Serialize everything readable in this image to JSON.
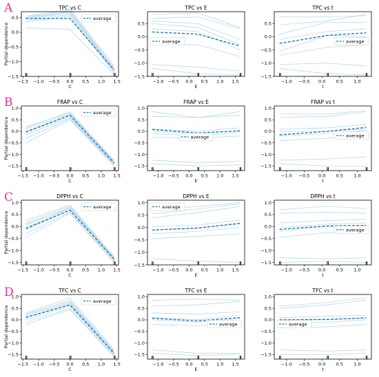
{
  "figure": {
    "row_letters": [
      "A",
      "B",
      "C",
      "D"
    ],
    "colors": {
      "ice": "#9ecae1",
      "average": "#1f77b4",
      "axis": "#000000",
      "letter": "#e0309a"
    }
  },
  "chart_data": [
    {
      "type": "line",
      "row": 0,
      "col": 0,
      "title": "TPC vs C",
      "xlabel": "C",
      "ylabel": "Partial dependence",
      "x": [
        -1.41,
        0,
        1.41
      ],
      "xlim": [
        -1.55,
        1.55
      ],
      "ylim": [
        -1.5,
        0.7
      ],
      "xticks": [
        -1.5,
        -1.0,
        -0.5,
        0.0,
        0.5,
        1.0,
        1.5
      ],
      "xtick_labels": [
        "−1.5",
        "−1.0",
        "−0.5",
        "0.0",
        "0.5",
        "1.0",
        "1.5"
      ],
      "yticks": [
        0.5,
        0.0,
        -0.5,
        -1.0,
        -1.5
      ],
      "ytick_labels": [
        "0.5",
        "0.0",
        "−0.5",
        "−1.0",
        "−1.5"
      ],
      "rug": [
        -1.41,
        -1.41,
        0,
        0,
        1.41,
        1.41
      ],
      "legend": "top-right",
      "legend_label": "average",
      "ice": [
        [
          0.55,
          0.75,
          -1.2
        ],
        [
          0.5,
          0.7,
          -1.25
        ],
        [
          0.45,
          0.65,
          -1.3
        ],
        [
          0.4,
          0.6,
          -1.35
        ],
        [
          0.5,
          0.8,
          -1.15
        ],
        [
          0.35,
          0.55,
          -1.4
        ],
        [
          0.45,
          0.7,
          -1.3
        ],
        [
          0.15,
          0.1,
          -1.45
        ]
      ],
      "average": [
        0.47,
        0.47,
        -1.28
      ]
    },
    {
      "type": "line",
      "row": 0,
      "col": 1,
      "title": "TPC vs E",
      "xlabel": "E",
      "ylabel": "",
      "x": [
        -1.2,
        0.28,
        1.65
      ],
      "xlim": [
        -1.35,
        1.8
      ],
      "ylim": [
        -1.5,
        0.95
      ],
      "xticks": [
        -1.0,
        -0.5,
        0.0,
        0.5,
        1.0,
        1.5
      ],
      "xtick_labels": [
        "−1.0",
        "−0.5",
        "0.0",
        "0.5",
        "1.0",
        "1.5"
      ],
      "yticks": [
        0.5,
        0.0,
        -0.5,
        -1.0,
        -1.5
      ],
      "ytick_labels": [
        "0.5",
        "0.0",
        "−0.5",
        "−1.0",
        "−1.5"
      ],
      "rug": [
        -1.2,
        -1.2,
        0.28,
        0.28,
        1.65,
        1.65
      ],
      "legend": "center-left",
      "legend_label": "average",
      "ice": [
        [
          0.85,
          0.9,
          0.35
        ],
        [
          0.7,
          0.75,
          0.3
        ],
        [
          0.6,
          0.5,
          -0.1
        ],
        [
          0.5,
          0.35,
          -0.3
        ],
        [
          0.3,
          0.2,
          -0.5
        ],
        [
          -0.3,
          -0.3,
          -0.75
        ],
        [
          -1.05,
          -1.15,
          -1.3
        ],
        [
          -1.2,
          -1.4,
          -1.45
        ]
      ],
      "average": [
        0.18,
        0.1,
        -0.35
      ]
    },
    {
      "type": "line",
      "row": 0,
      "col": 2,
      "title": "TPC vs t",
      "xlabel": "t",
      "ylabel": "",
      "x": [
        -1.2,
        0.15,
        1.25
      ],
      "xlim": [
        -1.35,
        1.4
      ],
      "ylim": [
        -1.5,
        0.95
      ],
      "xticks": [
        -1.0,
        -0.5,
        0.0,
        0.5,
        1.0
      ],
      "xtick_labels": [
        "−1.0",
        "−0.5",
        "0.0",
        "0.5",
        "1.0"
      ],
      "yticks": [
        0.5,
        0.0,
        -0.5,
        -1.0,
        -1.5
      ],
      "ytick_labels": [
        "0.5",
        "0.0",
        "−0.5",
        "−1.0",
        "−1.5"
      ],
      "rug": [
        -1.2,
        -1.2,
        0.15,
        0.15,
        1.25,
        1.25
      ],
      "legend": "center-right",
      "legend_label": "average",
      "ice": [
        [
          0.75,
          0.75,
          0.8
        ],
        [
          0.45,
          0.6,
          0.85
        ],
        [
          0.1,
          0.55,
          0.55
        ],
        [
          -0.1,
          0.2,
          0.3
        ],
        [
          -0.55,
          0.05,
          0.0
        ],
        [
          -0.7,
          -0.4,
          -0.3
        ],
        [
          -1.05,
          -1.0,
          -1.1
        ],
        [
          -1.2,
          -1.4,
          -1.45
        ]
      ],
      "average": [
        -0.25,
        0.05,
        0.15
      ]
    },
    {
      "type": "line",
      "row": 1,
      "col": 0,
      "title": "FRAP vs C",
      "xlabel": "C",
      "ylabel": "Partial dependence",
      "x": [
        -1.41,
        0,
        1.41
      ],
      "xlim": [
        -1.55,
        1.55
      ],
      "ylim": [
        -1.7,
        1.1
      ],
      "xticks": [
        -1.5,
        -1.0,
        -0.5,
        0.0,
        0.5,
        1.0,
        1.5
      ],
      "xtick_labels": [
        "−1.5",
        "−1.0",
        "−0.5",
        "0.0",
        "0.5",
        "1.0",
        "1.5"
      ],
      "yticks": [
        1.0,
        0.5,
        0.0,
        -0.5,
        -1.0,
        -1.5
      ],
      "ytick_labels": [
        "1.0",
        "0.5",
        "0.0",
        "−0.5",
        "−1.0",
        "−1.5"
      ],
      "rug": [
        -1.41,
        -1.41,
        0,
        0,
        1.41,
        1.41
      ],
      "legend": "top-right",
      "legend_label": "average",
      "ice": [
        [
          0.2,
          0.8,
          -1.25
        ],
        [
          0.1,
          0.75,
          -1.3
        ],
        [
          0.0,
          0.7,
          -1.35
        ],
        [
          -0.05,
          0.65,
          -1.4
        ],
        [
          -0.15,
          0.6,
          -1.45
        ],
        [
          -0.3,
          0.55,
          -1.45
        ],
        [
          -0.5,
          0.5,
          -1.5
        ],
        [
          0.15,
          0.85,
          -1.3
        ]
      ],
      "average": [
        -0.03,
        0.7,
        -1.37
      ]
    },
    {
      "type": "line",
      "row": 1,
      "col": 1,
      "title": "FRAP vs E",
      "xlabel": "E",
      "ylabel": "",
      "x": [
        -1.2,
        0.28,
        1.65
      ],
      "xlim": [
        -1.35,
        1.8
      ],
      "ylim": [
        -1.7,
        1.1
      ],
      "xticks": [
        -1.0,
        -0.5,
        0.0,
        0.5,
        1.0,
        1.5
      ],
      "xtick_labels": [
        "−1.0",
        "−0.5",
        "0.0",
        "0.5",
        "1.0",
        "1.5"
      ],
      "yticks": [
        1.0,
        0.5,
        0.0,
        -0.5,
        -1.0,
        -1.5
      ],
      "ytick_labels": [
        "1.0",
        "0.5",
        "0.0",
        "−0.5",
        "−1.0",
        "−1.5"
      ],
      "rug": [
        -1.2,
        -1.2,
        0.28,
        0.28,
        1.65,
        1.65
      ],
      "legend": "center",
      "legend_label": "average",
      "ice": [
        [
          0.85,
          0.6,
          0.85
        ],
        [
          0.65,
          0.6,
          0.7
        ],
        [
          0.1,
          0.0,
          0.15
        ],
        [
          0.0,
          -0.1,
          0.05
        ],
        [
          -0.1,
          -0.2,
          -0.05
        ],
        [
          -0.25,
          -0.3,
          -0.2
        ],
        [
          -1.25,
          -1.35,
          -1.3
        ],
        [
          -1.4,
          -1.5,
          -1.45
        ]
      ],
      "average": [
        0.08,
        -0.07,
        0.02
      ]
    },
    {
      "type": "line",
      "row": 1,
      "col": 2,
      "title": "FRAP vs t",
      "xlabel": "t",
      "ylabel": "",
      "x": [
        -1.2,
        0.15,
        1.25
      ],
      "xlim": [
        -1.35,
        1.4
      ],
      "ylim": [
        -1.7,
        1.1
      ],
      "xticks": [
        -1.0,
        -0.5,
        0.0,
        0.5,
        1.0
      ],
      "xtick_labels": [
        "−1.0",
        "−0.5",
        "0.0",
        "0.5",
        "1.0"
      ],
      "yticks": [
        1.0,
        0.5,
        0.0,
        -0.5,
        -1.0,
        -1.5
      ],
      "ytick_labels": [
        "1.0",
        "0.5",
        "0.0",
        "−0.5",
        "−1.0",
        "−1.5"
      ],
      "rug": [
        -1.2,
        -1.2,
        0.15,
        0.15,
        1.25,
        1.25
      ],
      "legend": "center-right",
      "legend_label": "average",
      "ice": [
        [
          0.75,
          0.75,
          0.9
        ],
        [
          0.6,
          0.65,
          0.85
        ],
        [
          0.1,
          0.15,
          0.3
        ],
        [
          0.0,
          0.0,
          0.1
        ],
        [
          -0.2,
          -0.1,
          0.05
        ],
        [
          -0.4,
          -0.3,
          -0.1
        ],
        [
          -1.25,
          -1.2,
          -1.1
        ],
        [
          -1.4,
          -1.5,
          -1.5
        ]
      ],
      "average": [
        -0.15,
        0.0,
        0.17
      ]
    },
    {
      "type": "line",
      "row": 2,
      "col": 0,
      "title": "DPPH vs C",
      "xlabel": "C",
      "ylabel": "Partial dependence",
      "x": [
        -1.41,
        0,
        1.41
      ],
      "xlim": [
        -1.55,
        1.55
      ],
      "ylim": [
        -1.6,
        1.1
      ],
      "xticks": [
        -1.5,
        -1.0,
        -0.5,
        0.0,
        0.5,
        1.0,
        1.5
      ],
      "xtick_labels": [
        "−1.5",
        "−1.0",
        "−0.5",
        "0.0",
        "0.5",
        "1.0",
        "1.5"
      ],
      "yticks": [
        1.0,
        0.5,
        0.0,
        -0.5,
        -1.0,
        -1.5
      ],
      "ytick_labels": [
        "1.0",
        "0.5",
        "0.0",
        "−0.5",
        "−1.0",
        "−1.5"
      ],
      "rug": [
        -1.41,
        -1.41,
        0,
        0,
        1.41,
        1.41
      ],
      "legend": "top-right",
      "legend_label": "average",
      "ice": [
        [
          0.25,
          0.9,
          -1.25
        ],
        [
          0.15,
          0.85,
          -1.3
        ],
        [
          0.05,
          0.8,
          -1.3
        ],
        [
          -0.05,
          0.75,
          -1.35
        ],
        [
          -0.15,
          0.7,
          -1.4
        ],
        [
          -0.3,
          0.6,
          -1.45
        ],
        [
          -0.45,
          0.55,
          -1.5
        ],
        [
          0.1,
          0.75,
          -1.35
        ]
      ],
      "average": [
        -0.08,
        0.68,
        -1.36
      ]
    },
    {
      "type": "line",
      "row": 2,
      "col": 1,
      "title": "DPPH vs E",
      "xlabel": "E",
      "ylabel": "",
      "x": [
        -1.2,
        0.28,
        1.65
      ],
      "xlim": [
        -1.35,
        1.8
      ],
      "ylim": [
        -1.5,
        1.1
      ],
      "xticks": [
        -1.0,
        -0.5,
        0.0,
        0.5,
        1.0,
        1.5
      ],
      "xtick_labels": [
        "−1.0",
        "−0.5",
        "0.0",
        "0.5",
        "1.0",
        "1.5"
      ],
      "yticks": [
        1.0,
        0.5,
        0.0,
        -0.5,
        -1.0,
        -1.5
      ],
      "ytick_labels": [
        "1.0",
        "0.5",
        "0.0",
        "−0.5",
        "−1.0",
        "−1.5"
      ],
      "rug": [
        -1.2,
        -1.2,
        0.28,
        0.28,
        1.65,
        1.65
      ],
      "legend": "top-left",
      "legend_label": "average",
      "ice": [
        [
          0.7,
          0.85,
          1.0
        ],
        [
          0.55,
          0.75,
          0.95
        ],
        [
          0.4,
          0.6,
          0.85
        ],
        [
          0.05,
          0.1,
          0.3
        ],
        [
          -0.1,
          0.0,
          0.15
        ],
        [
          -0.25,
          -0.15,
          0.0
        ],
        [
          -0.45,
          -0.35,
          -0.25
        ],
        [
          -1.25,
          -1.35,
          -1.4
        ]
      ],
      "average": [
        -0.1,
        -0.02,
        0.17
      ]
    },
    {
      "type": "line",
      "row": 2,
      "col": 2,
      "title": "DPPH vs t",
      "xlabel": "t",
      "ylabel": "",
      "x": [
        -1.2,
        0.15,
        1.25
      ],
      "xlim": [
        -1.35,
        1.4
      ],
      "ylim": [
        -1.6,
        1.1
      ],
      "xticks": [
        -1.0,
        -0.5,
        0.0,
        0.5,
        1.0
      ],
      "xtick_labels": [
        "−1.0",
        "−0.5",
        "0.0",
        "0.5",
        "1.0"
      ],
      "yticks": [
        1.0,
        0.5,
        0.0,
        -0.5,
        -1.0,
        -1.5
      ],
      "ytick_labels": [
        "1.0",
        "0.5",
        "0.0",
        "−0.5",
        "−1.0",
        "−1.5"
      ],
      "rug": [
        -1.2,
        -1.2,
        0.15,
        0.15,
        1.25,
        1.25
      ],
      "legend": "center-right",
      "legend_label": "average",
      "ice": [
        [
          0.7,
          0.85,
          0.75
        ],
        [
          0.55,
          0.6,
          0.55
        ],
        [
          0.15,
          0.25,
          0.3
        ],
        [
          -0.05,
          0.1,
          0.15
        ],
        [
          -0.2,
          0.0,
          0.05
        ],
        [
          -0.45,
          -0.25,
          -0.2
        ],
        [
          -1.3,
          -1.35,
          -1.3
        ],
        [
          -1.5,
          -1.45,
          -1.5
        ]
      ],
      "average": [
        -0.12,
        0.03,
        0.05
      ]
    },
    {
      "type": "line",
      "row": 3,
      "col": 0,
      "title": "TFC vs C",
      "xlabel": "C",
      "ylabel": "Partial dependence",
      "x": [
        -1.41,
        0,
        1.41
      ],
      "xlim": [
        -1.55,
        1.55
      ],
      "ylim": [
        -1.7,
        1.1
      ],
      "xticks": [
        -1.5,
        -1.0,
        -0.5,
        0.0,
        0.5,
        1.0,
        1.5
      ],
      "xtick_labels": [
        "−1.5",
        "−1.0",
        "−0.5",
        "0.0",
        "0.5",
        "1.0",
        "1.5"
      ],
      "yticks": [
        1.0,
        0.5,
        0.0,
        -0.5,
        -1.0,
        -1.5
      ],
      "ytick_labels": [
        "1.0",
        "0.5",
        "0.0",
        "−0.5",
        "−1.0",
        "−1.5"
      ],
      "rug": [
        -1.41,
        -1.41,
        0,
        0,
        1.41,
        1.41
      ],
      "legend": "top-right",
      "legend_label": "average",
      "ice": [
        [
          0.3,
          0.95,
          -1.3
        ],
        [
          0.25,
          0.85,
          -1.35
        ],
        [
          0.2,
          0.8,
          -1.4
        ],
        [
          0.1,
          0.7,
          -1.45
        ],
        [
          0.0,
          0.6,
          -1.5
        ],
        [
          -0.1,
          0.5,
          -1.55
        ],
        [
          -0.2,
          0.45,
          -1.6
        ],
        [
          0.15,
          0.75,
          -1.45
        ]
      ],
      "average": [
        0.1,
        0.65,
        -1.45
      ]
    },
    {
      "type": "line",
      "row": 3,
      "col": 1,
      "title": "TFC vs E",
      "xlabel": "E",
      "ylabel": "",
      "x": [
        -1.2,
        0.28,
        1.65
      ],
      "xlim": [
        -1.35,
        1.8
      ],
      "ylim": [
        -1.7,
        1.1
      ],
      "xticks": [
        -1.0,
        -0.5,
        0.0,
        0.5,
        1.0,
        1.5
      ],
      "xtick_labels": [
        "−1.0",
        "−0.5",
        "0.0",
        "0.5",
        "1.0",
        "1.5"
      ],
      "yticks": [
        1.0,
        0.5,
        0.0,
        -0.5,
        -1.0,
        -1.5
      ],
      "ytick_labels": [
        "1.0",
        "0.5",
        "0.0",
        "−0.5",
        "−1.0",
        "−1.5"
      ],
      "rug": [
        -1.2,
        -1.2,
        0.28,
        0.28,
        1.65,
        1.65
      ],
      "legend": "center-right",
      "legend_label": "average",
      "ice": [
        [
          0.85,
          0.9,
          0.85
        ],
        [
          0.6,
          0.65,
          0.8
        ],
        [
          0.3,
          0.25,
          0.35
        ],
        [
          0.1,
          0.0,
          0.2
        ],
        [
          0.0,
          -0.1,
          0.05
        ],
        [
          -0.2,
          -0.25,
          -0.15
        ],
        [
          -1.3,
          -1.45,
          -1.45
        ],
        [
          -1.45,
          -1.55,
          -1.5
        ]
      ],
      "average": [
        0.07,
        -0.05,
        0.1
      ]
    },
    {
      "type": "line",
      "row": 3,
      "col": 2,
      "title": "TFC vs t",
      "xlabel": "t",
      "ylabel": "",
      "x": [
        -1.2,
        0.15,
        1.25
      ],
      "xlim": [
        -1.35,
        1.4
      ],
      "ylim": [
        -1.7,
        1.1
      ],
      "xticks": [
        -1.0,
        -0.5,
        0.0,
        0.5,
        1.0
      ],
      "xtick_labels": [
        "−1.0",
        "−0.5",
        "0.0",
        "0.5",
        "1.0"
      ],
      "yticks": [
        1.0,
        0.5,
        0.0,
        -0.5,
        -1.0,
        -1.5
      ],
      "ytick_labels": [
        "1.0",
        "0.5",
        "0.0",
        "−0.5",
        "−1.0",
        "−1.5"
      ],
      "rug": [
        -1.2,
        -1.2,
        0.15,
        0.15,
        1.25,
        1.25
      ],
      "legend": "center-left",
      "legend_label": "average",
      "ice": [
        [
          0.6,
          0.75,
          0.95
        ],
        [
          0.5,
          0.65,
          0.85
        ],
        [
          0.1,
          0.15,
          0.2
        ],
        [
          0.0,
          0.0,
          0.1
        ],
        [
          -0.15,
          -0.1,
          0.0
        ],
        [
          -0.35,
          -0.3,
          -0.2
        ],
        [
          -1.3,
          -1.35,
          -1.3
        ],
        [
          -1.5,
          -1.5,
          -1.45
        ]
      ],
      "average": [
        0.0,
        0.02,
        0.08
      ]
    }
  ]
}
